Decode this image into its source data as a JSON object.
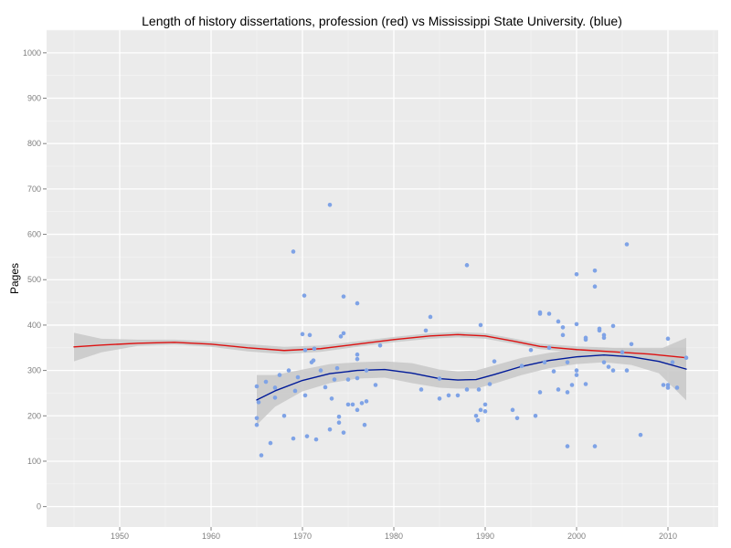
{
  "chart_data": {
    "type": "scatter",
    "title": "Length of history dissertations, profession (red) vs Mississippi State University. (blue)",
    "xlabel": "",
    "ylabel": "Pages",
    "xlim": [
      1942,
      2015.5
    ],
    "ylim": [
      -45,
      1050
    ],
    "x_ticks": [
      1950,
      1960,
      1970,
      1980,
      1990,
      2000,
      2010
    ],
    "y_ticks": [
      0,
      100,
      200,
      300,
      400,
      500,
      600,
      700,
      800,
      900,
      1000
    ],
    "grid": true,
    "colors": {
      "panel": "#ebebeb",
      "grid_major": "#ffffff",
      "grid_minor": "#f5f5f5",
      "points": "#7fa3e6",
      "profession_line": "#dd1111",
      "msu_line": "#001a99",
      "ribbon": "#c8c8c8"
    },
    "series": [
      {
        "type": "scatter",
        "values": [
          [
            1965,
            265
          ],
          [
            1965,
            195
          ],
          [
            1965,
            180
          ],
          [
            1965.2,
            230
          ],
          [
            1965.5,
            113
          ],
          [
            1966,
            275
          ],
          [
            1966.5,
            140
          ],
          [
            1967,
            240
          ],
          [
            1967,
            262
          ],
          [
            1967.5,
            290
          ],
          [
            1968,
            200
          ],
          [
            1968.5,
            300
          ],
          [
            1969,
            150
          ],
          [
            1969,
            562
          ],
          [
            1969.2,
            255
          ],
          [
            1969.5,
            285
          ],
          [
            1970,
            380
          ],
          [
            1970.2,
            465
          ],
          [
            1970.3,
            345
          ],
          [
            1970.3,
            245
          ],
          [
            1970.5,
            155
          ],
          [
            1970.8,
            378
          ],
          [
            1971,
            318
          ],
          [
            1971.2,
            322
          ],
          [
            1971.3,
            348
          ],
          [
            1971.5,
            148
          ],
          [
            1972,
            300
          ],
          [
            1972.5,
            263
          ],
          [
            1973,
            665
          ],
          [
            1973,
            170
          ],
          [
            1973.2,
            238
          ],
          [
            1973.5,
            280
          ],
          [
            1973.8,
            305
          ],
          [
            1974,
            198
          ],
          [
            1974,
            185
          ],
          [
            1974.2,
            375
          ],
          [
            1974.5,
            463
          ],
          [
            1974.5,
            382
          ],
          [
            1974.5,
            163
          ],
          [
            1975,
            280
          ],
          [
            1975,
            225
          ],
          [
            1975.5,
            225
          ],
          [
            1976,
            448
          ],
          [
            1976,
            335
          ],
          [
            1976,
            325
          ],
          [
            1976,
            283
          ],
          [
            1976,
            213
          ],
          [
            1976.5,
            228
          ],
          [
            1976.8,
            180
          ],
          [
            1977,
            300
          ],
          [
            1977,
            232
          ],
          [
            1978,
            268
          ],
          [
            1978.5,
            355
          ],
          [
            1983,
            258
          ],
          [
            1983.5,
            388
          ],
          [
            1984,
            418
          ],
          [
            1985,
            282
          ],
          [
            1985,
            238
          ],
          [
            1986,
            245
          ],
          [
            1987,
            245
          ],
          [
            1988,
            532
          ],
          [
            1988,
            258
          ],
          [
            1989,
            200
          ],
          [
            1989.2,
            190
          ],
          [
            1989.3,
            258
          ],
          [
            1989.5,
            400
          ],
          [
            1989.5,
            213
          ],
          [
            1990,
            225
          ],
          [
            1990,
            210
          ],
          [
            1990.5,
            270
          ],
          [
            1991,
            320
          ],
          [
            1993,
            213
          ],
          [
            1993.5,
            195
          ],
          [
            1994,
            310
          ],
          [
            1995,
            345
          ],
          [
            1995.5,
            200
          ],
          [
            1996,
            428
          ],
          [
            1996,
            425
          ],
          [
            1996,
            252
          ],
          [
            1996.5,
            318
          ],
          [
            1997,
            425
          ],
          [
            1997,
            350
          ],
          [
            1997.5,
            298
          ],
          [
            1998,
            408
          ],
          [
            1998,
            258
          ],
          [
            1998.5,
            395
          ],
          [
            1998.5,
            378
          ],
          [
            1999,
            318
          ],
          [
            1999,
            252
          ],
          [
            1999,
            133
          ],
          [
            1999.5,
            268
          ],
          [
            2000,
            512
          ],
          [
            2000,
            402
          ],
          [
            2000,
            300
          ],
          [
            2000,
            290
          ],
          [
            2001,
            372
          ],
          [
            2001,
            368
          ],
          [
            2001,
            270
          ],
          [
            2002,
            133
          ],
          [
            2002,
            520
          ],
          [
            2002,
            485
          ],
          [
            2002.5,
            392
          ],
          [
            2002.5,
            388
          ],
          [
            2003,
            378
          ],
          [
            2003,
            372
          ],
          [
            2003,
            318
          ],
          [
            2003.5,
            308
          ],
          [
            2004,
            300
          ],
          [
            2004,
            398
          ],
          [
            2005,
            340
          ],
          [
            2005.5,
            578
          ],
          [
            2005.5,
            300
          ],
          [
            2006,
            358
          ],
          [
            2007,
            158
          ],
          [
            2009.5,
            268
          ],
          [
            2010,
            370
          ],
          [
            2010,
            268
          ],
          [
            2010,
            262
          ],
          [
            2010.5,
            318
          ],
          [
            2011,
            262
          ],
          [
            2012,
            328
          ]
        ]
      },
      {
        "type": "line",
        "values": [
          [
            1945,
            352
          ],
          [
            1948,
            356
          ],
          [
            1952,
            360
          ],
          [
            1956,
            362
          ],
          [
            1960,
            358
          ],
          [
            1964,
            350
          ],
          [
            1968,
            344
          ],
          [
            1972,
            348
          ],
          [
            1976,
            358
          ],
          [
            1980,
            368
          ],
          [
            1984,
            376
          ],
          [
            1987,
            379
          ],
          [
            1990,
            376
          ],
          [
            1993,
            365
          ],
          [
            1996,
            353
          ],
          [
            2000,
            346
          ],
          [
            2004,
            341
          ],
          [
            2008,
            336
          ],
          [
            2012,
            328
          ]
        ]
      },
      {
        "type": "line",
        "values": [
          [
            1965,
            235
          ],
          [
            1967,
            255
          ],
          [
            1970,
            278
          ],
          [
            1973,
            293
          ],
          [
            1976,
            300
          ],
          [
            1979,
            302
          ],
          [
            1982,
            294
          ],
          [
            1985,
            282
          ],
          [
            1987,
            279
          ],
          [
            1989,
            280
          ],
          [
            1991,
            291
          ],
          [
            1994,
            309
          ],
          [
            1997,
            322
          ],
          [
            2000,
            330
          ],
          [
            2003,
            334
          ],
          [
            2006,
            330
          ],
          [
            2009,
            320
          ],
          [
            2012,
            303
          ]
        ]
      }
    ],
    "ribbons": [
      {
        "values": [
          [
            1945,
            320,
            383
          ],
          [
            1948,
            340,
            370
          ],
          [
            1952,
            354,
            368
          ],
          [
            1956,
            357,
            368
          ],
          [
            1960,
            352,
            364
          ],
          [
            1964,
            342,
            358
          ],
          [
            1968,
            336,
            352
          ],
          [
            1972,
            341,
            355
          ],
          [
            1976,
            352,
            364
          ],
          [
            1980,
            362,
            374
          ],
          [
            1984,
            370,
            382
          ],
          [
            1987,
            373,
            385
          ],
          [
            1990,
            370,
            382
          ],
          [
            1993,
            359,
            371
          ],
          [
            1996,
            347,
            359
          ],
          [
            2000,
            339,
            353
          ],
          [
            2004,
            332,
            350
          ],
          [
            2008,
            322,
            350
          ],
          [
            2012,
            308,
            350
          ]
        ]
      },
      {
        "values": [
          [
            1965,
            180,
            290
          ],
          [
            1967,
            220,
            290
          ],
          [
            1970,
            254,
            302
          ],
          [
            1973,
            272,
            314
          ],
          [
            1976,
            282,
            318
          ],
          [
            1979,
            284,
            320
          ],
          [
            1982,
            272,
            316
          ],
          [
            1985,
            262,
            302
          ],
          [
            1987,
            260,
            298
          ],
          [
            1989,
            260,
            300
          ],
          [
            1991,
            271,
            311
          ],
          [
            1994,
            290,
            328
          ],
          [
            1997,
            305,
            339
          ],
          [
            2000,
            314,
            346
          ],
          [
            2003,
            318,
            350
          ],
          [
            2006,
            312,
            348
          ],
          [
            2009,
            294,
            346
          ],
          [
            2012,
            234,
            372
          ]
        ]
      }
    ]
  }
}
